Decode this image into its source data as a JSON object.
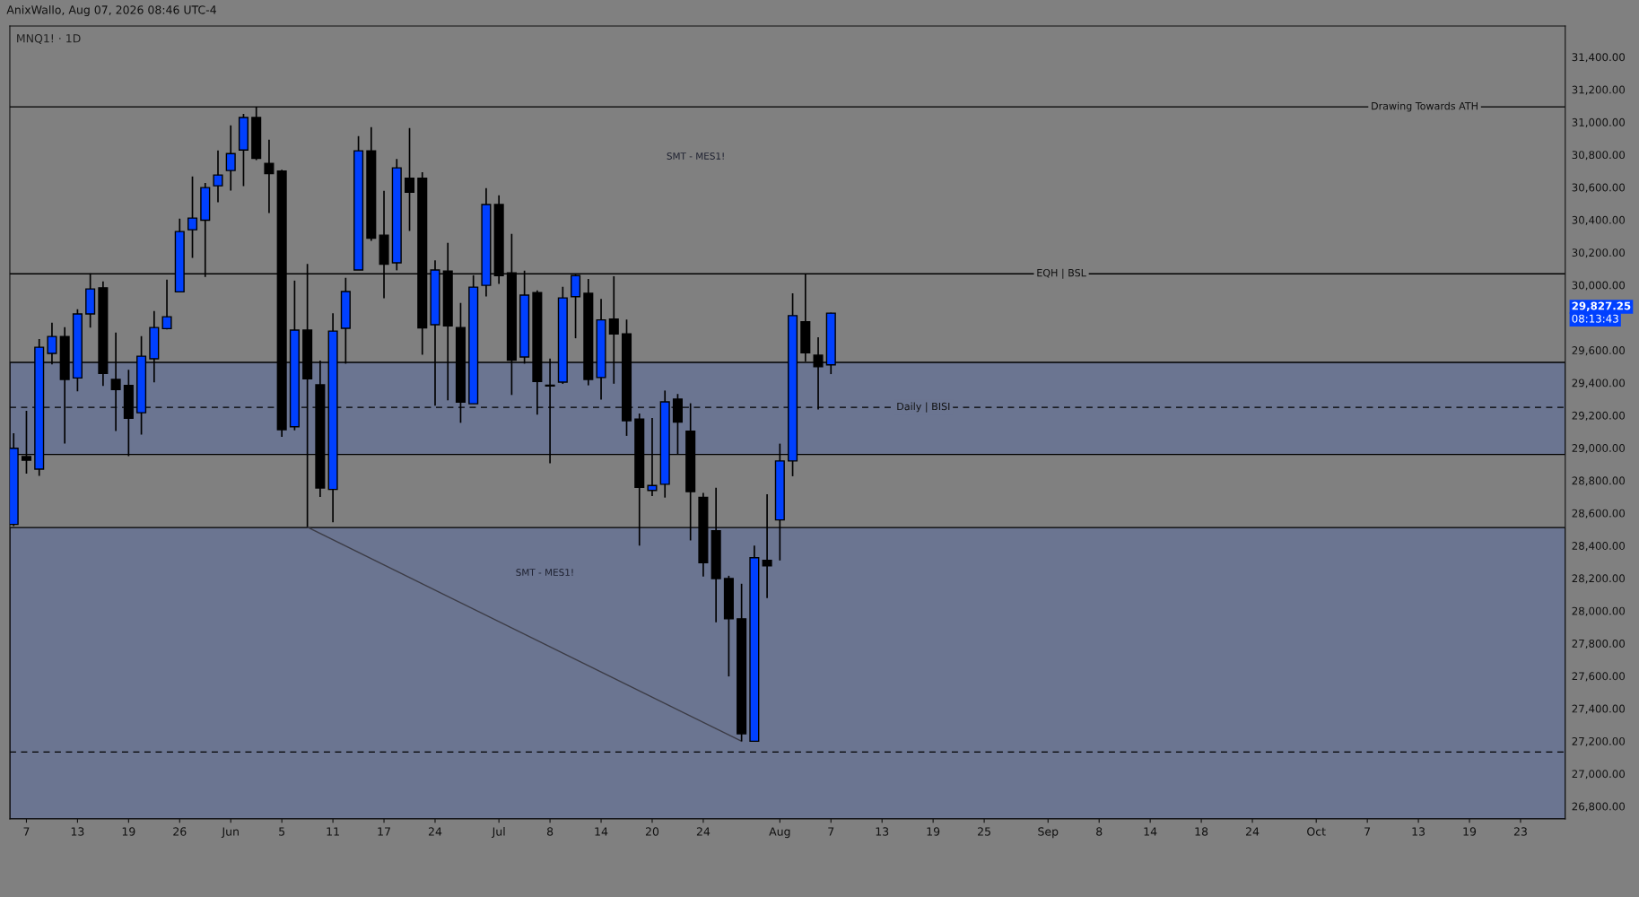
{
  "chart_data": {
    "type": "candlestick",
    "title": "AnixWallo, Aug 07, 2026 08:46 UTC-4",
    "subtitle": "MNQ1! · 1D",
    "categories": [
      null,
      "7",
      null,
      null,
      null,
      "13",
      null,
      null,
      null,
      "19",
      null,
      null,
      null,
      "26",
      null,
      null,
      null,
      "Jun",
      null,
      null,
      null,
      "5",
      null,
      null,
      null,
      "11",
      null,
      null,
      null,
      "17",
      null,
      null,
      null,
      "24",
      null,
      null,
      null,
      null,
      "Jul",
      null,
      null,
      null,
      "8",
      null,
      null,
      null,
      "14",
      null,
      null,
      null,
      "20",
      null,
      null,
      null,
      "24",
      null,
      null,
      null,
      null,
      null,
      "Aug",
      null,
      null,
      null,
      "7",
      null,
      null,
      null,
      "13",
      null,
      null,
      null,
      "19",
      null,
      null,
      null,
      "25",
      null,
      null,
      null,
      null,
      "Sep",
      null,
      null,
      null,
      "8",
      null,
      null,
      null,
      "14",
      null,
      null,
      null,
      "18",
      null,
      null,
      null,
      "24",
      null,
      null,
      null,
      null,
      "Oct",
      null,
      null,
      null,
      "7",
      null,
      null,
      null,
      "13",
      null,
      null,
      null,
      "19",
      null,
      null,
      null,
      "23",
      null,
      null,
      null
    ],
    "ohlc": [
      [
        28530,
        29090,
        28520,
        28998
      ],
      [
        28947,
        29227,
        28842,
        28925
      ],
      [
        28870,
        29668,
        28829,
        29618
      ],
      [
        29580,
        29769,
        29512,
        29684
      ],
      [
        29684,
        29741,
        29026,
        29420
      ],
      [
        29429,
        29851,
        29347,
        29822
      ],
      [
        29822,
        30071,
        29738,
        29976
      ],
      [
        29983,
        30022,
        29380,
        29457
      ],
      [
        29420,
        29708,
        29104,
        29358
      ],
      [
        29383,
        29479,
        28950,
        29182
      ],
      [
        29216,
        29686,
        29081,
        29563
      ],
      [
        29547,
        29840,
        29402,
        29739
      ],
      [
        29732,
        30033,
        29727,
        29805
      ],
      [
        29958,
        30407,
        29958,
        30328
      ],
      [
        30339,
        30666,
        30167,
        30411
      ],
      [
        30398,
        30627,
        30049,
        30598
      ],
      [
        30609,
        30826,
        30508,
        30675
      ],
      [
        30703,
        30980,
        30580,
        30807
      ],
      [
        30829,
        31050,
        30607,
        31028
      ],
      [
        31028,
        31094,
        30767,
        30778
      ],
      [
        30747,
        30892,
        30442,
        30684
      ],
      [
        30699,
        30708,
        29068,
        29112
      ],
      [
        29130,
        30027,
        29108,
        29723
      ],
      [
        29723,
        30130,
        28514,
        29424
      ],
      [
        29387,
        29536,
        28699,
        28754
      ],
      [
        28745,
        29827,
        28544,
        29717
      ],
      [
        29734,
        30044,
        29517,
        29960
      ],
      [
        30092,
        30914,
        30092,
        30824
      ],
      [
        30824,
        30969,
        30271,
        30288
      ],
      [
        30306,
        30578,
        29919,
        30128
      ],
      [
        30136,
        30774,
        30090,
        30719
      ],
      [
        30655,
        30963,
        30332,
        30569
      ],
      [
        30655,
        30692,
        29572,
        29737
      ],
      [
        29756,
        30152,
        29259,
        30092
      ],
      [
        30086,
        30259,
        29292,
        29749
      ],
      [
        29739,
        29890,
        29154,
        29281
      ],
      [
        29271,
        30060,
        29271,
        29987
      ],
      [
        29998,
        30594,
        29930,
        30494
      ],
      [
        30494,
        30550,
        30007,
        30057
      ],
      [
        30075,
        30314,
        29325,
        29539
      ],
      [
        29558,
        30088,
        29517,
        29938
      ],
      [
        29954,
        29967,
        29204,
        29407
      ],
      [
        29385,
        29549,
        28906,
        29380
      ],
      [
        29404,
        29989,
        29393,
        29921
      ],
      [
        29928,
        30064,
        29673,
        30058
      ],
      [
        29949,
        30037,
        29384,
        29420
      ],
      [
        29432,
        29915,
        29297,
        29786
      ],
      [
        29791,
        30054,
        29394,
        29700
      ],
      [
        29700,
        29788,
        29074,
        29167
      ],
      [
        29177,
        29211,
        28400,
        28758
      ],
      [
        28739,
        29184,
        28705,
        28769
      ],
      [
        28777,
        29352,
        28695,
        29283
      ],
      [
        29300,
        29331,
        28958,
        29158
      ],
      [
        29102,
        29274,
        28432,
        28731
      ],
      [
        28697,
        28724,
        28210,
        28295
      ],
      [
        28491,
        28756,
        27930,
        28198
      ],
      [
        28198,
        28215,
        27597,
        27951
      ],
      [
        27951,
        28166,
        27199,
        27245
      ],
      [
        27199,
        28400,
        27199,
        28326
      ],
      [
        28309,
        28716,
        28078,
        28276
      ],
      [
        28558,
        29026,
        28309,
        28920
      ],
      [
        28920,
        29949,
        28826,
        29812
      ],
      [
        29774,
        30069,
        29531,
        29584
      ],
      [
        29569,
        29679,
        29236,
        29498
      ],
      [
        29510,
        29830,
        29453,
        29827.25
      ],
      null,
      null,
      null,
      null,
      null,
      null,
      null,
      null,
      null,
      null,
      null,
      null,
      null,
      null,
      null,
      null,
      null,
      null,
      null,
      null,
      null,
      null,
      null,
      null,
      null,
      null,
      null,
      null,
      null,
      null,
      null,
      null,
      null,
      null,
      null,
      null,
      null,
      null,
      null,
      null,
      null,
      null,
      null,
      null,
      null,
      null,
      null,
      null,
      null,
      null,
      null,
      null,
      null,
      null,
      null,
      null,
      null
    ],
    "colors": [
      "#0040ff",
      "#000000",
      "#0040ff",
      "#0040ff",
      "#000000",
      "#0040ff",
      "#0040ff",
      "#000000",
      "#000000",
      "#000000",
      "#0040ff",
      "#0040ff",
      "#0040ff",
      "#0040ff",
      "#0040ff",
      "#0040ff",
      "#0040ff",
      "#0040ff",
      "#0040ff",
      "#000000",
      "#000000",
      "#000000",
      "#0040ff",
      "#000000",
      "#000000",
      "#0040ff",
      "#0040ff",
      "#0040ff",
      "#000000",
      "#000000",
      "#0040ff",
      "#000000",
      "#000000",
      "#0040ff",
      "#000000",
      "#000000",
      "#0040ff",
      "#0040ff",
      "#000000",
      "#000000",
      "#0040ff",
      "#000000",
      "#000000",
      "#0040ff",
      "#0040ff",
      "#000000",
      "#0040ff",
      "#000000",
      "#000000",
      "#000000",
      "#0040ff",
      "#0040ff",
      "#000000",
      "#000000",
      "#000000",
      "#000000",
      "#000000",
      "#000000",
      "#0040ff",
      "#000000",
      "#0040ff",
      "#0040ff",
      "#000000",
      "#000000",
      "#0040ff",
      null,
      null,
      null,
      null,
      null,
      null,
      null,
      null,
      null,
      null,
      null,
      null,
      null,
      null,
      null,
      null,
      null,
      null,
      null,
      null,
      null,
      null,
      null,
      null,
      null,
      null,
      null,
      null,
      null,
      null,
      null,
      null,
      null,
      null,
      null,
      null,
      null,
      null,
      null,
      null,
      null,
      null,
      null,
      null,
      null,
      null,
      null,
      null,
      null,
      null,
      null,
      null,
      null,
      null,
      null,
      null,
      null
    ],
    "series": [
      {
        "type": "line",
        "color": "#3c3c46",
        "values": [
          null,
          null,
          null,
          null,
          null,
          null,
          null,
          null,
          null,
          null,
          null,
          null,
          null,
          null,
          null,
          null,
          null,
          null,
          null,
          null,
          null,
          null,
          null,
          28514,
          null,
          null,
          null,
          null,
          null,
          null,
          null,
          null,
          null,
          null,
          null,
          null,
          null,
          null,
          null,
          null,
          null,
          null,
          null,
          null,
          null,
          null,
          null,
          null,
          null,
          null,
          null,
          null,
          null,
          null,
          null,
          null,
          null,
          27199,
          null,
          null,
          null,
          null,
          null,
          null,
          null,
          null,
          null,
          null,
          null,
          null,
          null,
          null,
          null,
          null,
          null,
          null,
          null,
          null,
          null,
          null,
          null,
          null,
          null,
          null,
          null,
          null,
          null,
          null,
          null,
          null,
          null,
          null,
          null,
          null,
          null,
          null,
          null,
          null,
          null,
          null,
          null,
          null,
          null,
          null,
          null,
          null,
          null,
          null,
          null,
          null,
          null,
          null,
          null,
          null,
          null,
          null,
          null,
          null,
          null,
          null,
          null,
          null
        ]
      }
    ],
    "ylim": [
      26722,
      31590
    ],
    "yticks": [
      {
        "value": 26800,
        "label": "26,800.00"
      },
      {
        "value": 27000,
        "label": "27,000.00"
      },
      {
        "value": 27200,
        "label": "27,200.00"
      },
      {
        "value": 27400,
        "label": "27,400.00"
      },
      {
        "value": 27600,
        "label": "27,600.00"
      },
      {
        "value": 27800,
        "label": "27,800.00"
      },
      {
        "value": 28000,
        "label": "28,000.00"
      },
      {
        "value": 28200,
        "label": "28,200.00"
      },
      {
        "value": 28400,
        "label": "28,400.00"
      },
      {
        "value": 28600,
        "label": "28,600.00"
      },
      {
        "value": 28800,
        "label": "28,800.00"
      },
      {
        "value": 29000,
        "label": "29,000.00"
      },
      {
        "value": 29200,
        "label": "29,200.00"
      },
      {
        "value": 29400,
        "label": "29,400.00"
      },
      {
        "value": 29600,
        "label": "29,600.00"
      },
      {
        "value": 30000,
        "label": "30,000.00"
      },
      {
        "value": 30200,
        "label": "30,200.00"
      },
      {
        "value": 30400,
        "label": "30,400.00"
      },
      {
        "value": 30600,
        "label": "30,600.00"
      },
      {
        "value": 30800,
        "label": "30,800.00"
      },
      {
        "value": 31000,
        "label": "31,000.00"
      },
      {
        "value": 31200,
        "label": "31,200.00"
      },
      {
        "value": 31400,
        "label": "31,400.00"
      }
    ],
    "bands": [
      {
        "axis": "y",
        "from": 26722,
        "to": 28511,
        "color": "#6b7591"
      },
      {
        "axis": "y",
        "from": 28960,
        "to": 29525,
        "color": "#6b7591"
      }
    ],
    "ref_lines": [
      {
        "axis": "y",
        "value": 31094,
        "label": "Drawing Towards ATH",
        "color": "#000000",
        "line_style": "solid"
      },
      {
        "axis": "y",
        "value": 30069,
        "label": "EQH | BSL",
        "color": "#000000",
        "line_style": "solid"
      },
      {
        "axis": "y",
        "value": 29249,
        "label": "Daily | BISI",
        "color": "#000000",
        "line_style": "dashed"
      },
      {
        "axis": "y",
        "value": 27133,
        "color": "#000000",
        "line_style": "dashed"
      }
    ],
    "annotations": [
      "29,827.25",
      "08:13:43",
      "SMT - MES1!",
      "SMT - MES1!"
    ]
  }
}
